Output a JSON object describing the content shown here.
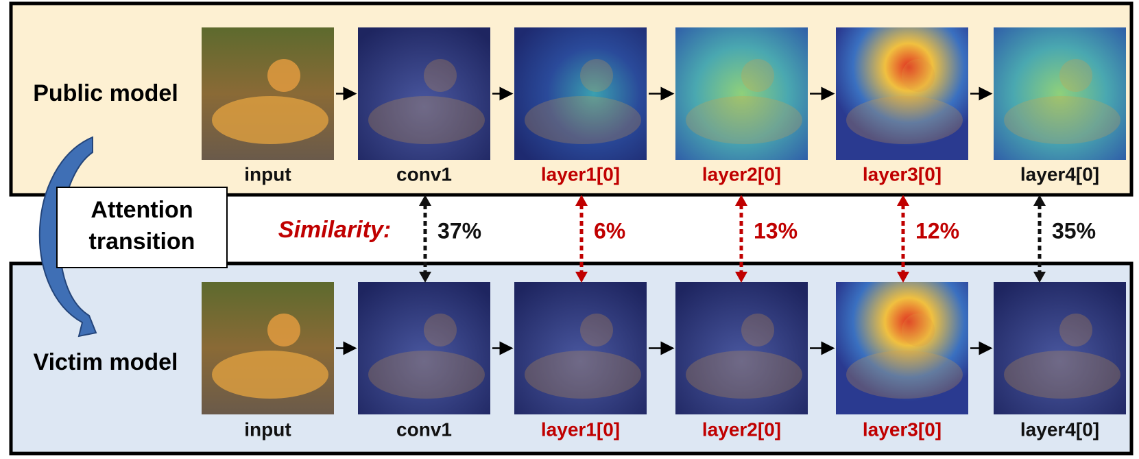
{
  "public_model": {
    "label": "Public model"
  },
  "victim_model": {
    "label": "Victim model"
  },
  "transition": {
    "lines": [
      "Attention",
      "transition"
    ]
  },
  "similarity_label": "Similarity:",
  "layers": [
    {
      "name": "input",
      "color": "#111111"
    },
    {
      "name": "conv1",
      "color": "#111111"
    },
    {
      "name": "layer1[0]",
      "color": "#c00000"
    },
    {
      "name": "layer2[0]",
      "color": "#c00000"
    },
    {
      "name": "layer3[0]",
      "color": "#c00000"
    },
    {
      "name": "layer4[0]",
      "color": "#111111"
    }
  ],
  "similarities": [
    {
      "text": "37%",
      "color": "#111111"
    },
    {
      "text": "6%",
      "color": "#c00000"
    },
    {
      "text": "13%",
      "color": "#c00000"
    },
    {
      "text": "12%",
      "color": "#c00000"
    },
    {
      "text": "35%",
      "color": "#111111"
    }
  ]
}
